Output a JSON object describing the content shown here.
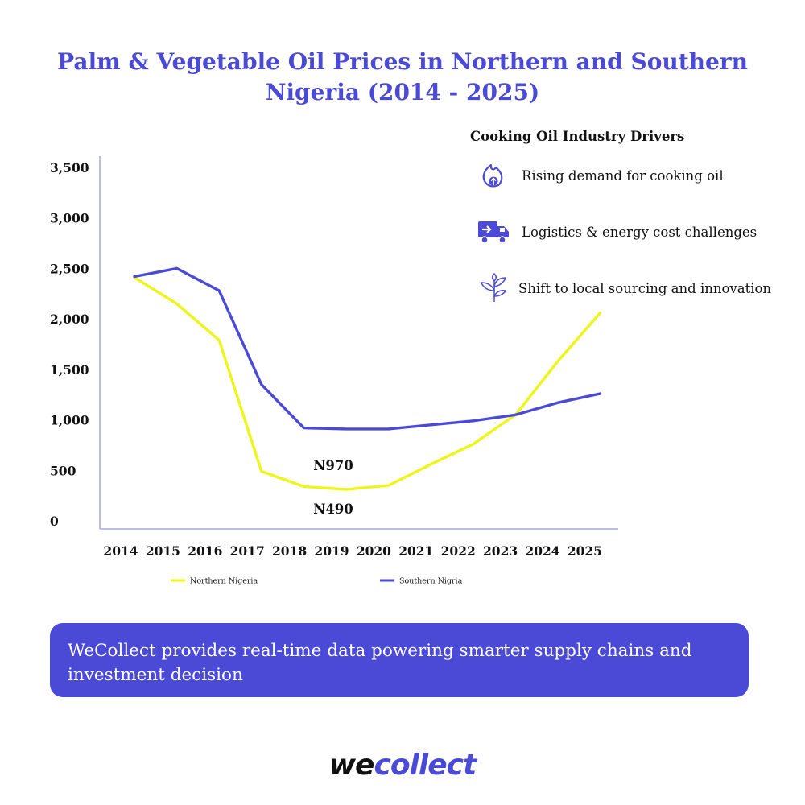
{
  "colors": {
    "accent": "#4a4ad6",
    "northern": "#eef51a",
    "southern": "#4a4ad6"
  },
  "drivers": {
    "heading": "Cooking Oil Industry Drivers",
    "items": [
      {
        "icon": "rising-flame-icon",
        "label": "Rising demand for cooking oil"
      },
      {
        "icon": "delivery-truck-icon",
        "label": "Logistics & energy cost challenges"
      },
      {
        "icon": "sprout-icon",
        "label": "Shift to local sourcing and innovation"
      }
    ]
  },
  "banner": {
    "text": "WeCollect provides real-time data powering smarter supply chains and investment decision"
  },
  "logo": {
    "we": "we",
    "collect": "collect"
  },
  "chart_data": {
    "type": "line",
    "title": "Palm & Vegetable Oil Prices in Northern and Southern Nigeria (2014 - 2025)",
    "xlabel": "",
    "ylabel": "",
    "categories": [
      "2014",
      "2015",
      "2016",
      "2017",
      "2018",
      "2019",
      "2020",
      "2021",
      "2022",
      "2023",
      "2024",
      "2025"
    ],
    "yticks": [
      "0",
      "500",
      "1,000",
      "1,500",
      "2,000",
      "2,500",
      "3,000",
      "3,500"
    ],
    "ylim": [
      0,
      3500
    ],
    "grid": false,
    "legend": "bottom",
    "series": [
      {
        "name": "Northern Nigeria",
        "color": "#eef51a",
        "values": [
          2410,
          2150,
          1790,
          490,
          340,
          310,
          350,
          560,
          760,
          1050,
          1580,
          2060
        ]
      },
      {
        "name": "Southern Nigria",
        "color": "#4a4ad6",
        "values": [
          2420,
          2500,
          2280,
          1350,
          920,
          910,
          910,
          950,
          990,
          1050,
          1170,
          1260
        ]
      }
    ],
    "annotations": [
      {
        "text": "N970",
        "x": "2019",
        "value": 970
      },
      {
        "text": "N490",
        "x": "2019",
        "value": 490
      }
    ]
  }
}
